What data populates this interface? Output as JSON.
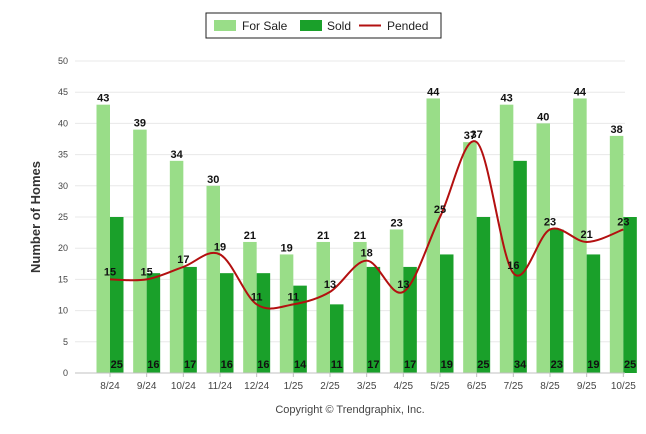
{
  "chart_data": {
    "type": "bar",
    "title": "",
    "xlabel": "",
    "ylabel": "Number of Homes",
    "ylim": [
      0,
      50
    ],
    "yticks": [
      0,
      5,
      10,
      15,
      20,
      25,
      30,
      35,
      40,
      45,
      50
    ],
    "grid": true,
    "legend_position": "top-center",
    "categories": [
      "8/24",
      "9/24",
      "10/24",
      "11/24",
      "12/24",
      "1/25",
      "2/25",
      "3/25",
      "4/25",
      "5/25",
      "6/25",
      "7/25",
      "8/25",
      "9/25",
      "10/25"
    ],
    "series": [
      {
        "name": "For Sale",
        "type": "bar",
        "color": "#99dd88",
        "values": [
          43,
          39,
          34,
          30,
          21,
          19,
          21,
          21,
          23,
          44,
          37,
          43,
          40,
          44,
          38
        ]
      },
      {
        "name": "Sold",
        "type": "bar",
        "color": "#1aa02a",
        "values": [
          25,
          16,
          17,
          16,
          16,
          14,
          11,
          17,
          17,
          19,
          25,
          34,
          23,
          19,
          25
        ]
      },
      {
        "name": "Pended",
        "type": "line",
        "color": "#b31010",
        "values": [
          15,
          15,
          17,
          19,
          11,
          11,
          13,
          18,
          13,
          25,
          37,
          16,
          23,
          21,
          23
        ]
      }
    ]
  },
  "footer": {
    "copyright": "Copyright © Trendgraphix, Inc."
  }
}
